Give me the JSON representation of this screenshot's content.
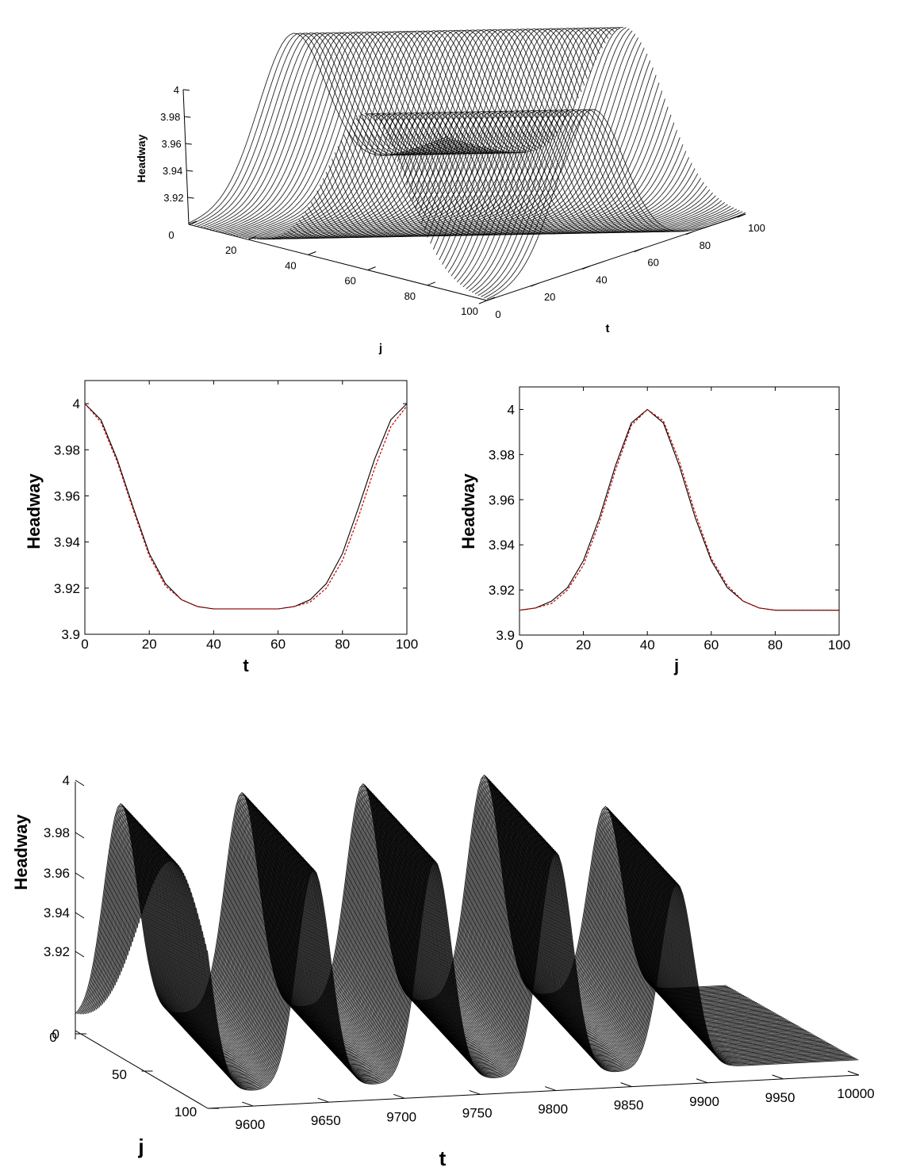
{
  "chart_data": [
    {
      "id": "top_surface",
      "type": "surface",
      "zlabel": "Headway",
      "xlabel": "t",
      "ylabel": "j",
      "t_range": [
        0,
        100
      ],
      "j_range": [
        0,
        100
      ],
      "z_range": [
        3.91,
        4.0
      ],
      "t_ticks": [
        "0",
        "20",
        "40",
        "60",
        "80",
        "100"
      ],
      "j_ticks": [
        "0",
        "20",
        "40",
        "60",
        "80",
        "100"
      ],
      "z_ticks": [
        "3.92",
        "3.94",
        "3.96",
        "3.98",
        "4"
      ],
      "z_tick_values": [
        3.92,
        3.94,
        3.96,
        3.98,
        4.0
      ],
      "surface": {
        "baseline": 3.911,
        "amplitude": 0.089,
        "peak_j": 40,
        "peak_t_values": [
          0,
          100
        ],
        "width": 13
      },
      "grid": false
    },
    {
      "id": "middle_left",
      "type": "line",
      "xlabel": "t",
      "ylabel": "Headway",
      "xlim": [
        0,
        100
      ],
      "ylim": [
        3.9,
        4.01
      ],
      "x_ticks": [
        "0",
        "20",
        "40",
        "60",
        "80",
        "100"
      ],
      "x_tick_values": [
        0,
        20,
        40,
        60,
        80,
        100
      ],
      "y_ticks": [
        "3.9",
        "3.92",
        "3.94",
        "3.96",
        "3.98",
        "4"
      ],
      "y_tick_values": [
        3.9,
        3.92,
        3.94,
        3.96,
        3.98,
        4.0
      ],
      "series": [
        {
          "style": "solid",
          "color": "#000000",
          "x": [
            0,
            5,
            10,
            15,
            20,
            25,
            30,
            35,
            40,
            45,
            50,
            55,
            60,
            65,
            70,
            75,
            80,
            85,
            90,
            95,
            100
          ],
          "y": [
            4.0,
            3.993,
            3.976,
            3.955,
            3.935,
            3.922,
            3.915,
            3.912,
            3.911,
            3.911,
            3.911,
            3.911,
            3.911,
            3.912,
            3.915,
            3.922,
            3.935,
            3.955,
            3.976,
            3.993,
            4.0
          ]
        },
        {
          "style": "dashed",
          "color": "#cc0000",
          "x": [
            0,
            5,
            10,
            15,
            20,
            25,
            30,
            35,
            40,
            45,
            50,
            55,
            60,
            65,
            70,
            75,
            80,
            85,
            90,
            95,
            100
          ],
          "y": [
            4.0,
            3.992,
            3.975,
            3.954,
            3.934,
            3.921,
            3.915,
            3.912,
            3.911,
            3.911,
            3.911,
            3.911,
            3.911,
            3.912,
            3.914,
            3.92,
            3.932,
            3.951,
            3.972,
            3.99,
            3.999
          ]
        }
      ],
      "grid": false
    },
    {
      "id": "middle_right",
      "type": "line",
      "xlabel": "j",
      "ylabel": "Headway",
      "xlim": [
        0,
        100
      ],
      "ylim": [
        3.9,
        4.01
      ],
      "x_ticks": [
        "0",
        "20",
        "40",
        "60",
        "80",
        "100"
      ],
      "x_tick_values": [
        0,
        20,
        40,
        60,
        80,
        100
      ],
      "y_ticks": [
        "3.9",
        "3.92",
        "3.94",
        "3.96",
        "3.98",
        "4"
      ],
      "y_tick_values": [
        3.9,
        3.92,
        3.94,
        3.96,
        3.98,
        4.0
      ],
      "series": [
        {
          "style": "solid",
          "color": "#000000",
          "x": [
            0,
            5,
            10,
            15,
            20,
            25,
            30,
            35,
            40,
            45,
            50,
            55,
            60,
            65,
            70,
            75,
            80,
            85,
            90,
            95,
            100
          ],
          "y": [
            3.911,
            3.912,
            3.915,
            3.921,
            3.933,
            3.952,
            3.975,
            3.994,
            4.0,
            3.994,
            3.975,
            3.952,
            3.933,
            3.921,
            3.915,
            3.912,
            3.911,
            3.911,
            3.911,
            3.911,
            3.911
          ]
        },
        {
          "style": "dashed",
          "color": "#cc0000",
          "x": [
            0,
            5,
            10,
            15,
            20,
            25,
            30,
            35,
            40,
            45,
            50,
            55,
            60,
            65,
            70,
            75,
            80,
            85,
            90,
            95,
            100
          ],
          "y": [
            3.911,
            3.912,
            3.914,
            3.92,
            3.931,
            3.95,
            3.973,
            3.993,
            4.0,
            3.995,
            3.977,
            3.954,
            3.934,
            3.922,
            3.915,
            3.912,
            3.911,
            3.911,
            3.911,
            3.911,
            3.911
          ]
        }
      ],
      "grid": false
    },
    {
      "id": "bottom_surface",
      "type": "surface",
      "zlabel": "Headway",
      "xlabel": "t",
      "ylabel": "j",
      "t_range": [
        9570,
        10000
      ],
      "j_range": [
        0,
        100
      ],
      "z_range": [
        3.91,
        4.0
      ],
      "t_ticks": [
        "9600",
        "9650",
        "9700",
        "9750",
        "9800",
        "9850",
        "9900",
        "9950",
        "10000"
      ],
      "j_ticks": [
        "0",
        "50",
        "100"
      ],
      "z_ticks": [
        "3.92",
        "3.94",
        "3.96",
        "3.98",
        "4"
      ],
      "z_tick_values": [
        3.92,
        3.94,
        3.96,
        3.98,
        4.0
      ],
      "surface": {
        "baseline": 3.911,
        "peak_t_values": [
          9600,
          9680,
          9760,
          9840,
          9920
        ],
        "peak_heights": [
          3.996,
          3.998,
          3.999,
          4.0,
          3.985
        ],
        "width": 11,
        "drift_per_j": 0.4
      },
      "grid": false
    }
  ]
}
